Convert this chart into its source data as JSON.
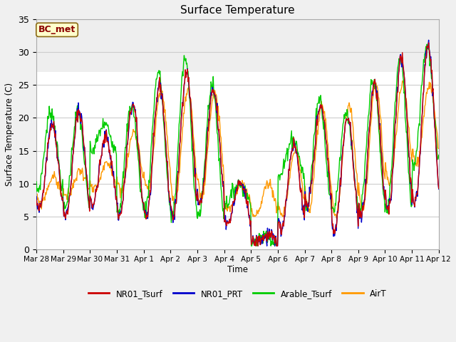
{
  "title": "Surface Temperature",
  "ylabel": "Surface Temperature (C)",
  "xlabel": "Time",
  "annotation": "BC_met",
  "ylim": [
    0,
    35
  ],
  "fig_width": 6.4,
  "fig_height": 4.8,
  "dpi": 100,
  "fig_bg_color": "#f0f0f0",
  "plot_bg_color": "#ffffff",
  "legend_entries": [
    "NR01_Tsurf",
    "NR01_PRT",
    "Arable_Tsurf",
    "AirT"
  ],
  "line_colors": [
    "#cc0000",
    "#0000cc",
    "#00cc00",
    "#ff9900"
  ],
  "tick_labels": [
    "Mar 28",
    "Mar 29",
    "Mar 30",
    "Mar 31",
    "Apr 1",
    "Apr 2",
    "Apr 3",
    "Apr 4",
    "Apr 5",
    "Apr 6",
    "Apr 7",
    "Apr 8",
    "Apr 9",
    "Apr 10",
    "Apr 11",
    "Apr 12"
  ],
  "n_days": 15,
  "pts_per_day": 48,
  "day_peaks": [
    19,
    21,
    17,
    22,
    25,
    27,
    24,
    10,
    2,
    16,
    22,
    20,
    25,
    29,
    31
  ],
  "night_mins": [
    6,
    5,
    7,
    5,
    5,
    5,
    7,
    4,
    1,
    3,
    7,
    3,
    5,
    6,
    7
  ],
  "arable_peaks": [
    21,
    21,
    19,
    22,
    27,
    29,
    25,
    10,
    2,
    17,
    23,
    21,
    26,
    29,
    31
  ],
  "arable_mins": [
    9,
    6,
    15,
    6,
    6,
    5,
    5,
    7,
    1,
    11,
    6,
    6,
    6,
    6,
    13
  ],
  "air_peaks": [
    11,
    12,
    13,
    18,
    24,
    24,
    24,
    10,
    10,
    15,
    22,
    22,
    25,
    25,
    25
  ],
  "air_mins": [
    7,
    8,
    9,
    9,
    9,
    7,
    8,
    6,
    5,
    5,
    6,
    5,
    6,
    10,
    13
  ]
}
